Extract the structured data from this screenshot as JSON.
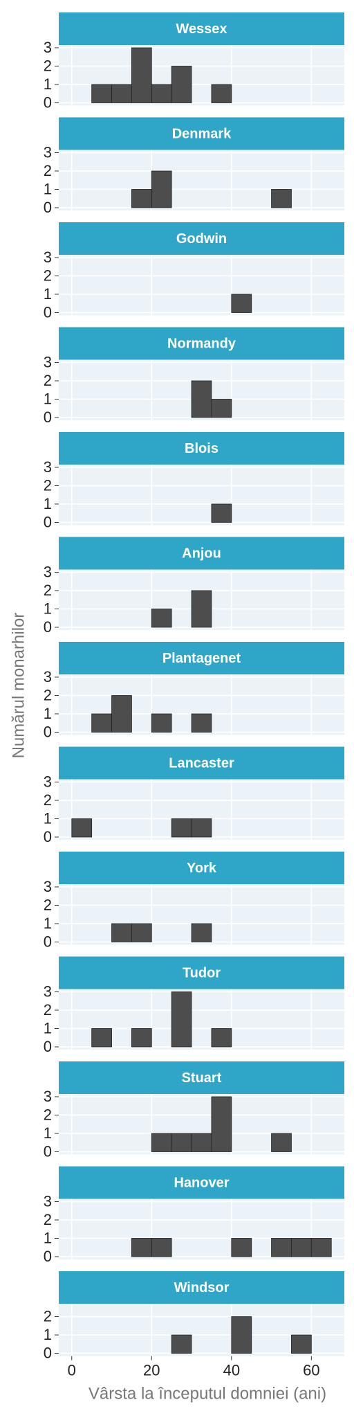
{
  "chart_data": {
    "type": "histogram",
    "x_label": "Vârsta la începutul domniei (ani)",
    "y_label": "Numărul monarhilor",
    "bins": [
      0,
      5,
      10,
      15,
      20,
      25,
      30,
      35,
      40,
      45,
      50,
      55,
      60,
      65
    ],
    "xlim": [
      -3.25,
      68.25
    ],
    "xticks": [
      0,
      20,
      40,
      60
    ],
    "color": "#4d4d4d",
    "strip_color": "#2fa6c8",
    "grid": true,
    "panels": [
      {
        "title": "Wessex",
        "values": [
          0,
          1,
          1,
          3,
          1,
          2,
          0,
          1,
          0,
          0,
          0,
          0,
          0
        ],
        "ylim": [
          -0.15,
          3.15
        ],
        "yticks": [
          0,
          1,
          2,
          3
        ]
      },
      {
        "title": "Denmark",
        "values": [
          0,
          0,
          0,
          1,
          2,
          0,
          0,
          0,
          0,
          0,
          1,
          0,
          0
        ],
        "ylim": [
          -0.15,
          3.15
        ],
        "yticks": [
          0,
          1,
          2,
          3
        ]
      },
      {
        "title": "Godwin",
        "values": [
          0,
          0,
          0,
          0,
          0,
          0,
          0,
          0,
          1,
          0,
          0,
          0,
          0
        ],
        "ylim": [
          -0.15,
          3.15
        ],
        "yticks": [
          0,
          1,
          2,
          3
        ]
      },
      {
        "title": "Normandy",
        "values": [
          0,
          0,
          0,
          0,
          0,
          0,
          2,
          1,
          0,
          0,
          0,
          0,
          0
        ],
        "ylim": [
          -0.15,
          3.15
        ],
        "yticks": [
          0,
          1,
          2,
          3
        ]
      },
      {
        "title": "Blois",
        "values": [
          0,
          0,
          0,
          0,
          0,
          0,
          0,
          1,
          0,
          0,
          0,
          0,
          0
        ],
        "ylim": [
          -0.15,
          3.15
        ],
        "yticks": [
          0,
          1,
          2,
          3
        ]
      },
      {
        "title": "Anjou",
        "values": [
          0,
          0,
          0,
          0,
          1,
          0,
          2,
          0,
          0,
          0,
          0,
          0,
          0
        ],
        "ylim": [
          -0.15,
          3.15
        ],
        "yticks": [
          0,
          1,
          2,
          3
        ]
      },
      {
        "title": "Plantagenet",
        "values": [
          0,
          1,
          2,
          0,
          1,
          0,
          1,
          0,
          0,
          0,
          0,
          0,
          0
        ],
        "ylim": [
          -0.15,
          3.15
        ],
        "yticks": [
          0,
          1,
          2,
          3
        ]
      },
      {
        "title": "Lancaster",
        "values": [
          1,
          0,
          0,
          0,
          0,
          1,
          1,
          0,
          0,
          0,
          0,
          0,
          0
        ],
        "ylim": [
          -0.15,
          3.15
        ],
        "yticks": [
          0,
          1,
          2,
          3
        ]
      },
      {
        "title": "York",
        "values": [
          0,
          0,
          1,
          1,
          0,
          0,
          1,
          0,
          0,
          0,
          0,
          0,
          0
        ],
        "ylim": [
          -0.15,
          3.15
        ],
        "yticks": [
          0,
          1,
          2,
          3
        ]
      },
      {
        "title": "Tudor",
        "values": [
          0,
          1,
          0,
          1,
          0,
          3,
          0,
          1,
          0,
          0,
          0,
          0,
          0
        ],
        "ylim": [
          -0.15,
          3.15
        ],
        "yticks": [
          0,
          1,
          2,
          3
        ]
      },
      {
        "title": "Stuart",
        "values": [
          0,
          0,
          0,
          0,
          1,
          1,
          1,
          3,
          0,
          0,
          1,
          0,
          0
        ],
        "ylim": [
          -0.15,
          3.15
        ],
        "yticks": [
          0,
          1,
          2,
          3
        ]
      },
      {
        "title": "Hanover",
        "values": [
          0,
          0,
          0,
          1,
          1,
          0,
          0,
          0,
          1,
          0,
          1,
          1,
          1
        ],
        "ylim": [
          -0.15,
          3.15
        ],
        "yticks": [
          0,
          1,
          2,
          3
        ]
      },
      {
        "title": "Windsor",
        "values": [
          0,
          0,
          0,
          0,
          0,
          1,
          0,
          0,
          2,
          0,
          0,
          1,
          0
        ],
        "ylim": [
          -0.15,
          2.7
        ],
        "yticks": [
          0,
          1,
          2
        ]
      }
    ]
  }
}
